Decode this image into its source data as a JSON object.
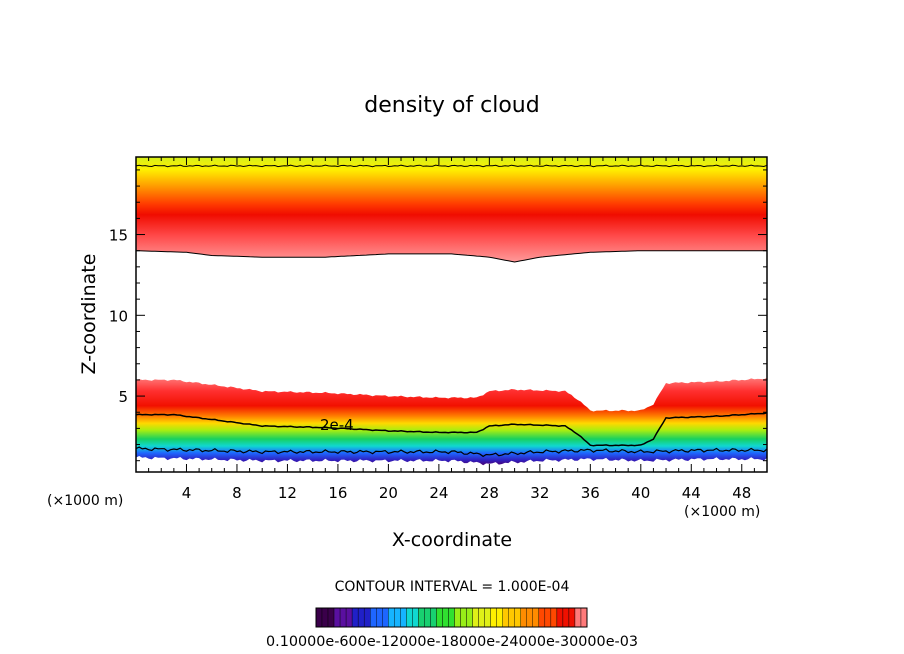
{
  "chart_data": {
    "type": "heatmap",
    "title": "density of cloud",
    "xlabel": "X-coordinate",
    "ylabel": "Z-coordinate",
    "x_unit_left": "(×1000 m)",
    "x_unit_right": "(×1000 m)",
    "xlim": [
      0,
      50
    ],
    "ylim": [
      0.3,
      19.8
    ],
    "x_ticks": [
      4,
      8,
      12,
      16,
      20,
      24,
      28,
      32,
      36,
      40,
      44,
      48
    ],
    "y_ticks": [
      5,
      10,
      15
    ],
    "contour_label": "2e-4",
    "contour_interval_text": "CONTOUR INTERVAL = 1.000E-04",
    "colorbar_labels": "0.10000e-600e-12000e-18000e-24000e-30000e-03",
    "colorbar_colors": [
      "#3a004a",
      "#5a0fa0",
      "#2020c8",
      "#1e66ff",
      "#16b4ff",
      "#10d8d0",
      "#18d070",
      "#30e030",
      "#98ee18",
      "#e0f018",
      "#fff000",
      "#ffc800",
      "#ff8c00",
      "#ff4800",
      "#f01000",
      "#ff7a7a"
    ],
    "upper_band": {
      "z_top": 19.8,
      "z_bottom_profile": [
        [
          0,
          14.0
        ],
        [
          4,
          13.9
        ],
        [
          6,
          13.7
        ],
        [
          10,
          13.6
        ],
        [
          15,
          13.6
        ],
        [
          20,
          13.8
        ],
        [
          25,
          13.8
        ],
        [
          28,
          13.6
        ],
        [
          30,
          13.3
        ],
        [
          32,
          13.6
        ],
        [
          36,
          13.9
        ],
        [
          40,
          14.0
        ],
        [
          45,
          14.0
        ],
        [
          50,
          14.0
        ]
      ]
    },
    "lower_band": {
      "z_top_profile": [
        [
          0,
          6.0
        ],
        [
          3,
          6.0
        ],
        [
          6,
          5.7
        ],
        [
          10,
          5.3
        ],
        [
          15,
          5.2
        ],
        [
          20,
          5.0
        ],
        [
          24,
          4.9
        ],
        [
          27,
          4.9
        ],
        [
          28,
          5.3
        ],
        [
          30,
          5.4
        ],
        [
          34,
          5.3
        ],
        [
          35,
          4.8
        ],
        [
          36,
          4.1
        ],
        [
          40,
          4.1
        ],
        [
          41,
          4.5
        ],
        [
          42,
          5.8
        ],
        [
          46,
          5.9
        ],
        [
          50,
          6.1
        ]
      ],
      "z_bottom_profile": [
        [
          0,
          1.2
        ],
        [
          5,
          1.1
        ],
        [
          10,
          1.0
        ],
        [
          15,
          1.0
        ],
        [
          20,
          1.0
        ],
        [
          25,
          1.0
        ],
        [
          28,
          0.8
        ],
        [
          30,
          0.9
        ],
        [
          32,
          1.0
        ],
        [
          36,
          1.1
        ],
        [
          40,
          1.0
        ],
        [
          45,
          1.1
        ],
        [
          50,
          1.1
        ]
      ]
    }
  }
}
